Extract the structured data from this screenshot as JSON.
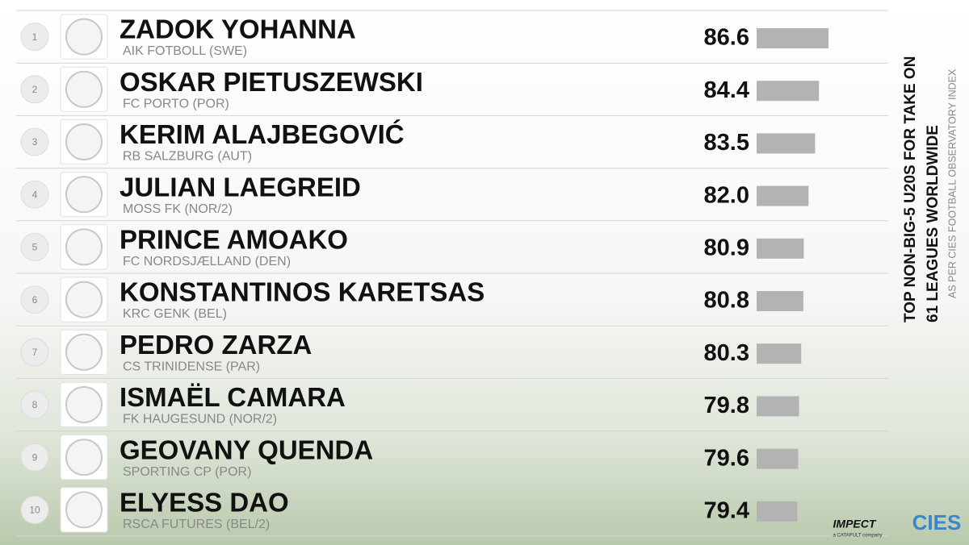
{
  "chart_data": {
    "type": "bar",
    "orientation": "horizontal",
    "title": [
      "TOP NON-BIG-5 U20S FOR TAKE ON",
      "61 LEAGUES WORLDWIDE"
    ],
    "subtitle": "AS PER CIES FOOTBALL OBSERVATORY INDEX",
    "ranks": [
      1,
      2,
      3,
      4,
      5,
      6,
      7,
      8,
      9,
      10
    ],
    "categories": [
      "ZADOK YOHANNA",
      "OSKAR PIETUSZEWSKI",
      "KERIM ALAJBEGOVIĆ",
      "JULIAN LAEGREID",
      "PRINCE AMOAKO",
      "KONSTANTINOS KARETSAS",
      "PEDRO ZARZA",
      "ISMAËL CAMARA",
      "GEOVANY QUENDA",
      "ELYESS DAO"
    ],
    "clubs": [
      "AIK FOTBOLL (SWE)",
      "FC PORTO (POR)",
      "RB SALZBURG (AUT)",
      "MOSS FK (NOR/2)",
      "FC NORDSJÆLLAND (DEN)",
      "KRC GENK (BEL)",
      "CS TRINIDENSE (PAR)",
      "FK HAUGESUND (NOR/2)",
      "SPORTING CP (POR)",
      "RSCA FUTURES (BEL/2)"
    ],
    "values": [
      86.6,
      84.4,
      83.5,
      82.0,
      80.9,
      80.8,
      80.3,
      79.8,
      79.6,
      79.4
    ],
    "value_labels": [
      "86.6",
      "84.4",
      "83.5",
      "82.0",
      "80.9",
      "80.8",
      "80.3",
      "79.8",
      "79.6",
      "79.4"
    ],
    "color": "#b3b3b3",
    "xlim": [
      70,
      88
    ],
    "brands": [
      "IMPECT",
      "a CATAPULT company",
      "CIES"
    ]
  }
}
